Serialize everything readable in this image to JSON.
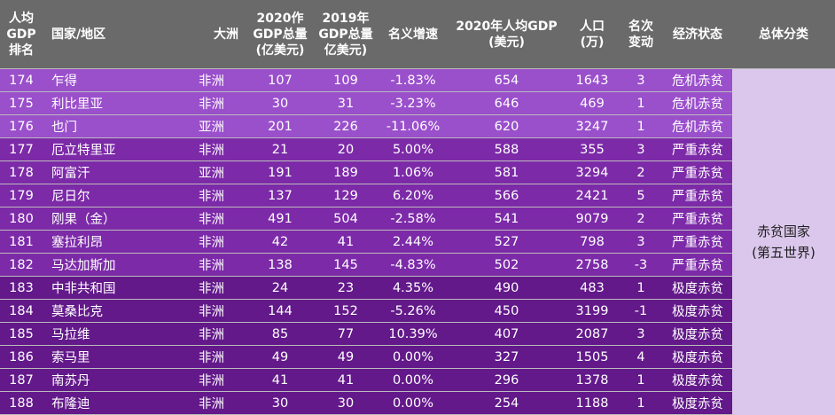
{
  "headers": {
    "rank": "人均GDP排名",
    "rank_lines": [
      "人均",
      "GDP",
      "排名"
    ],
    "country": "国家/地区",
    "continent": "大洲",
    "gdp2020_lines": [
      "2020作",
      "GDP总量",
      "(亿美元)"
    ],
    "gdp2019_lines": [
      "2019年",
      "GDP总量",
      "亿美元)"
    ],
    "growth": "名义增速",
    "pc2020_lines": [
      "2020年人均GDP",
      "(美元)"
    ],
    "pop_lines": [
      "人口",
      "(万)"
    ],
    "change_lines": [
      "名次",
      "变动"
    ],
    "status": "经济状态",
    "category": "总体分类"
  },
  "rows": [
    {
      "rank": "174",
      "country": "乍得",
      "continent": "非洲",
      "gdp2020": "107",
      "gdp2019": "109",
      "growth": "-1.83%",
      "pc": "654",
      "pop": "1643",
      "change": "3",
      "status": "危机赤贫"
    },
    {
      "rank": "175",
      "country": "利比里亚",
      "continent": "非洲",
      "gdp2020": "30",
      "gdp2019": "31",
      "growth": "-3.23%",
      "pc": "646",
      "pop": "469",
      "change": "1",
      "status": "危机赤贫"
    },
    {
      "rank": "176",
      "country": "也门",
      "continent": "亚洲",
      "gdp2020": "201",
      "gdp2019": "226",
      "growth": "-11.06%",
      "pc": "620",
      "pop": "3247",
      "change": "1",
      "status": "危机赤贫"
    },
    {
      "rank": "177",
      "country": "厄立特里亚",
      "continent": "非洲",
      "gdp2020": "21",
      "gdp2019": "20",
      "growth": "5.00%",
      "pc": "588",
      "pop": "355",
      "change": "3",
      "status": "严重赤贫"
    },
    {
      "rank": "178",
      "country": "阿富汗",
      "continent": "亚洲",
      "gdp2020": "191",
      "gdp2019": "189",
      "growth": "1.06%",
      "pc": "581",
      "pop": "3294",
      "change": "2",
      "status": "严重赤贫"
    },
    {
      "rank": "179",
      "country": "尼日尔",
      "continent": "非洲",
      "gdp2020": "137",
      "gdp2019": "129",
      "growth": "6.20%",
      "pc": "566",
      "pop": "2421",
      "change": "5",
      "status": "严重赤贫"
    },
    {
      "rank": "180",
      "country": "刚果（金）",
      "continent": "非洲",
      "gdp2020": "491",
      "gdp2019": "504",
      "growth": "-2.58%",
      "pc": "541",
      "pop": "9079",
      "change": "2",
      "status": "严重赤贫"
    },
    {
      "rank": "181",
      "country": "塞拉利昂",
      "continent": "非洲",
      "gdp2020": "42",
      "gdp2019": "41",
      "growth": "2.44%",
      "pc": "527",
      "pop": "798",
      "change": "3",
      "status": "严重赤贫"
    },
    {
      "rank": "182",
      "country": "马达加斯加",
      "continent": "非洲",
      "gdp2020": "138",
      "gdp2019": "145",
      "growth": "-4.83%",
      "pc": "502",
      "pop": "2758",
      "change": "-3",
      "status": "严重赤贫"
    },
    {
      "rank": "183",
      "country": "中非共和国",
      "continent": "非洲",
      "gdp2020": "24",
      "gdp2019": "23",
      "growth": "4.35%",
      "pc": "490",
      "pop": "483",
      "change": "1",
      "status": "极度赤贫"
    },
    {
      "rank": "184",
      "country": "莫桑比克",
      "continent": "非洲",
      "gdp2020": "144",
      "gdp2019": "152",
      "growth": "-5.26%",
      "pc": "450",
      "pop": "3199",
      "change": "-1",
      "status": "极度赤贫"
    },
    {
      "rank": "185",
      "country": "马拉维",
      "continent": "非洲",
      "gdp2020": "85",
      "gdp2019": "77",
      "growth": "10.39%",
      "pc": "407",
      "pop": "2087",
      "change": "3",
      "status": "极度赤贫"
    },
    {
      "rank": "186",
      "country": "索马里",
      "continent": "非洲",
      "gdp2020": "49",
      "gdp2019": "49",
      "growth": "0.00%",
      "pc": "327",
      "pop": "1505",
      "change": "4",
      "status": "极度赤贫"
    },
    {
      "rank": "187",
      "country": "南苏丹",
      "continent": "非洲",
      "gdp2020": "41",
      "gdp2019": "41",
      "growth": "0.00%",
      "pc": "296",
      "pop": "1378",
      "change": "1",
      "status": "极度赤贫"
    },
    {
      "rank": "188",
      "country": "布隆迪",
      "continent": "非洲",
      "gdp2020": "30",
      "gdp2019": "30",
      "growth": "0.00%",
      "pc": "254",
      "pop": "1188",
      "change": "1",
      "status": "极度赤贫"
    }
  ],
  "summary": {
    "line1": "赤贫国家",
    "line2": "(第五世界)"
  },
  "colors": {
    "header_bg": "#6a6a6a",
    "group_crisis": "#9a4fcb",
    "group_severe": "#7c2aa8",
    "group_extreme": "#63198a",
    "summary_bg": "#dbc7ec"
  }
}
